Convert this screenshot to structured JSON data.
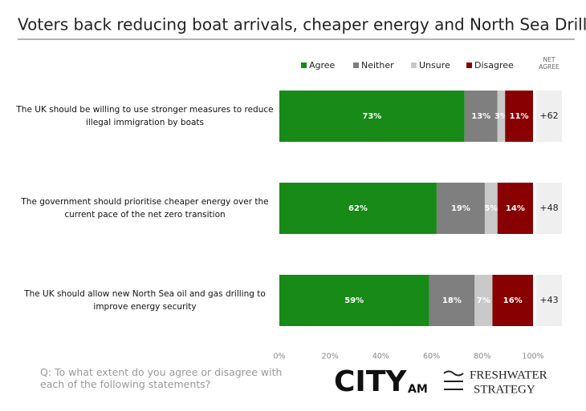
{
  "chart_data": {
    "type": "stacked-bar-horizontal",
    "title": "Voters back reducing boat arrivals, cheaper energy and North Sea Drilling",
    "categories": [
      "The UK should be willing to use stronger measures to reduce illegal immigration by boats",
      "The government should prioritise cheaper energy over the current pace of the net zero transition",
      "The UK should allow new North Sea oil and gas drilling to improve energy security"
    ],
    "series": [
      {
        "name": "Agree",
        "color": "#178a17",
        "values": [
          73,
          62,
          59
        ],
        "value_labels": [
          "73%",
          "62%",
          "59%"
        ]
      },
      {
        "name": "Neither",
        "color": "#7f7f7f",
        "values": [
          13,
          19,
          18
        ],
        "value_labels": [
          "13%",
          "19%",
          "18%"
        ]
      },
      {
        "name": "Unsure",
        "color": "#c9c9c9",
        "values": [
          3,
          5,
          7
        ],
        "value_labels": [
          "3%",
          "5%",
          "7%"
        ]
      },
      {
        "name": "Disagree",
        "color": "#880000",
        "values": [
          11,
          14,
          16
        ],
        "value_labels": [
          "11%",
          "14%",
          "16%"
        ]
      }
    ],
    "net": {
      "title": "NET AGREE",
      "values": [
        62,
        48,
        43
      ],
      "value_labels": [
        "+62",
        "+48",
        "+43"
      ]
    },
    "xlim": [
      0,
      100
    ],
    "xticks": [
      {
        "value": 0,
        "label": "0%"
      },
      {
        "value": 20,
        "label": "20%"
      },
      {
        "value": 40,
        "label": "40%"
      },
      {
        "value": 60,
        "label": "60%"
      },
      {
        "value": 80,
        "label": "80%"
      },
      {
        "value": 100,
        "label": "100%"
      }
    ],
    "footnote": "Q: To what extent do you agree or disagree with each of the following statements?",
    "logos": {
      "city": "CITY",
      "am": "AM",
      "freshwater": "FRESHWATER",
      "strategy": "STRATEGY"
    }
  }
}
